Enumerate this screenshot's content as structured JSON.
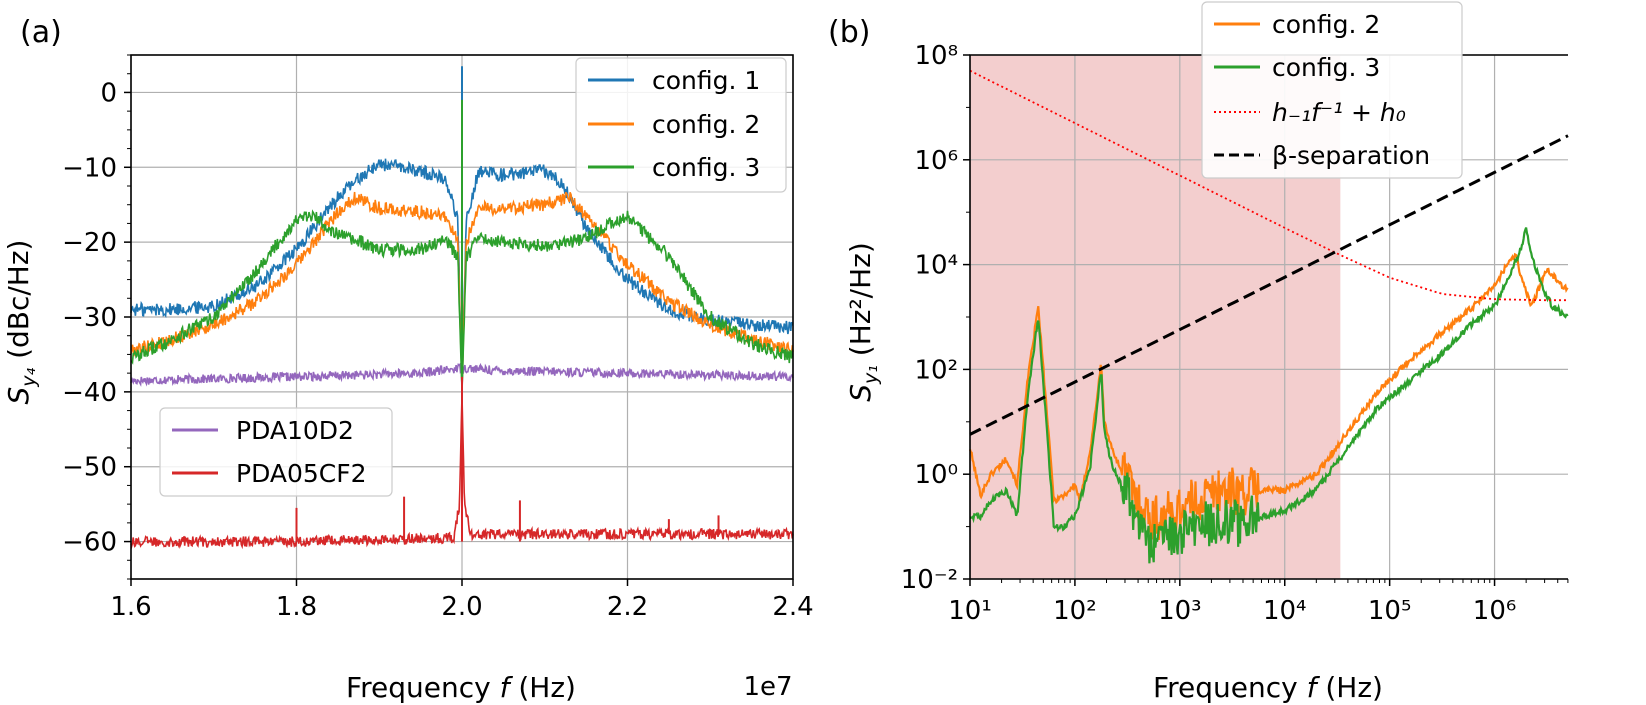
{
  "chart_data": [
    {
      "panel": "(a)",
      "type": "line",
      "xlabel_prefix": "Frequency ",
      "xlabel_var": "f",
      "xlabel_unit": " (Hz)",
      "ylabel_main": "S",
      "ylabel_sub": "y₄",
      "ylabel_unit": " (dBc/Hz)",
      "x_offset_text": "1e7",
      "xlim": [
        1.6,
        2.4
      ],
      "ylim": [
        -65,
        5
      ],
      "xticks": [
        1.6,
        1.8,
        2.0,
        2.2,
        2.4
      ],
      "xtick_labels": [
        "1.6",
        "1.8",
        "2.0",
        "2.2",
        "2.4"
      ],
      "yticks": [
        0,
        -10,
        -20,
        -30,
        -40,
        -50,
        -60
      ],
      "ytick_labels": [
        "0",
        "−10",
        "−20",
        "−30",
        "−40",
        "−50",
        "−60"
      ],
      "grid": true,
      "legend_upper": {
        "position": "top-right",
        "entries": [
          "config. 1",
          "config. 2",
          "config. 3"
        ]
      },
      "legend_lower": {
        "position": "center-left",
        "entries": [
          "PDA10D2",
          "PDA05CF2"
        ]
      },
      "series": [
        {
          "name": "config. 1",
          "color": "#1f77b4",
          "x": [
            1.6,
            1.65,
            1.7,
            1.75,
            1.8,
            1.85,
            1.88,
            1.9,
            1.95,
            1.98,
            1.995,
            2.0,
            2.005,
            2.02,
            2.05,
            2.1,
            2.12,
            2.15,
            2.2,
            2.25,
            2.3,
            2.35,
            2.4
          ],
          "y": [
            -29,
            -29,
            -28.5,
            -26,
            -21,
            -14,
            -11,
            -9.5,
            -10.5,
            -11.5,
            -17,
            -40,
            -17,
            -10.5,
            -11,
            -10.5,
            -12,
            -18,
            -25,
            -29,
            -30.5,
            -31,
            -31.5
          ]
        },
        {
          "name": "config. 2",
          "color": "#ff7f0e",
          "x": [
            1.6,
            1.65,
            1.7,
            1.75,
            1.8,
            1.85,
            1.87,
            1.9,
            1.95,
            1.98,
            1.995,
            2.0,
            2.005,
            2.02,
            2.05,
            2.1,
            2.13,
            2.15,
            2.2,
            2.25,
            2.3,
            2.35,
            2.4
          ],
          "y": [
            -34.5,
            -33,
            -31,
            -28,
            -23,
            -16,
            -14,
            -15.5,
            -16,
            -16.5,
            -20,
            -40,
            -20,
            -15.5,
            -15.5,
            -15,
            -14,
            -16.5,
            -23,
            -28,
            -31,
            -33,
            -34.5
          ]
        },
        {
          "name": "config. 3",
          "color": "#2ca02c",
          "x": [
            1.6,
            1.65,
            1.7,
            1.75,
            1.8,
            1.82,
            1.85,
            1.9,
            1.95,
            1.98,
            1.995,
            2.0,
            2.005,
            2.02,
            2.05,
            2.1,
            2.15,
            2.18,
            2.2,
            2.25,
            2.3,
            2.35,
            2.4
          ],
          "y": [
            -35.5,
            -33,
            -30,
            -24,
            -17,
            -16.5,
            -19,
            -21,
            -21,
            -19.5,
            -22,
            -40,
            -22,
            -19.5,
            -20,
            -20.5,
            -19.5,
            -17.5,
            -16.5,
            -22,
            -30,
            -33.5,
            -35.5
          ]
        },
        {
          "name": "PDA10D2",
          "color": "#9467bd",
          "x": [
            1.6,
            1.8,
            1.95,
            2.0,
            2.05,
            2.2,
            2.4
          ],
          "y": [
            -38.5,
            -38,
            -37.5,
            -36.8,
            -37.2,
            -37.5,
            -38
          ]
        },
        {
          "name": "PDA05CF2",
          "color": "#d62728",
          "x": [
            1.6,
            1.8,
            1.99,
            1.997,
            2.0,
            2.003,
            2.01,
            2.2,
            2.4
          ],
          "y": [
            -60,
            -60,
            -59.5,
            -55,
            -40,
            -55,
            -59,
            -59,
            -59
          ]
        }
      ],
      "spikes": [
        {
          "series": "config. 1",
          "x": 2.0,
          "y_top": 3.5,
          "y_base": -40
        },
        {
          "series": "config. 3",
          "x": 2.0,
          "y_top": -1,
          "y_base": -40
        },
        {
          "series": "PDA05CF2",
          "x": 2.0,
          "y_top": -38,
          "y_base": -60
        },
        {
          "series": "PDA05CF2",
          "x": 1.8,
          "y_top": -55.5,
          "y_base": -60
        },
        {
          "series": "PDA05CF2",
          "x": 1.93,
          "y_top": -54,
          "y_base": -60
        },
        {
          "series": "PDA05CF2",
          "x": 2.07,
          "y_top": -54.5,
          "y_base": -60
        },
        {
          "series": "PDA05CF2",
          "x": 2.25,
          "y_top": -57,
          "y_base": -59
        },
        {
          "series": "PDA05CF2",
          "x": 2.31,
          "y_top": -56.5,
          "y_base": -59
        }
      ]
    },
    {
      "panel": "(b)",
      "type": "line",
      "xscale": "log",
      "yscale": "log",
      "xlabel_prefix": "Frequency ",
      "xlabel_var": "f",
      "xlabel_unit": " (Hz)",
      "ylabel_main": "S",
      "ylabel_sub": "y₁",
      "ylabel_unit": " (Hz²/Hz)",
      "xlim_log10": [
        1,
        6.7
      ],
      "ylim_log10": [
        -2,
        8
      ],
      "xtick_exponents": [
        1,
        2,
        3,
        4,
        5,
        6
      ],
      "xtick_labels": [
        "10¹",
        "10²",
        "10³",
        "10⁴",
        "10⁵",
        "10⁶"
      ],
      "ytick_exponents": [
        -2,
        0,
        2,
        4,
        6,
        8
      ],
      "ytick_labels": [
        "10⁻²",
        "10⁰",
        "10²",
        "10⁴",
        "10⁶",
        "10⁸"
      ],
      "grid": true,
      "shaded_region_log10_x": [
        1,
        4.53
      ],
      "shade_color": "#e89d9e",
      "legend": {
        "position": "top-right",
        "entries": [
          "config. 2",
          "config. 3",
          "h₋₁f⁻¹ + h₀",
          "β-separation"
        ]
      },
      "series": [
        {
          "name": "config. 2",
          "color": "#ff7f0e",
          "log10_x": [
            1,
            1.1,
            1.2,
            1.35,
            1.45,
            1.55,
            1.65,
            1.72,
            1.8,
            1.9,
            2.0,
            2.05,
            2.15,
            2.25,
            2.28,
            2.35,
            2.5,
            2.6,
            2.75,
            2.9,
            3.0,
            3.2,
            3.4,
            3.6,
            3.8,
            4.0,
            4.3,
            4.6,
            4.9,
            5.2,
            5.5,
            5.8,
            6.0,
            6.15,
            6.2,
            6.25,
            6.35,
            6.5,
            6.7
          ],
          "log10_y": [
            0.5,
            -0.4,
            0,
            0.3,
            -0.2,
            1.8,
            3.2,
            1.5,
            -0.5,
            -0.4,
            -0.2,
            -0.5,
            0.5,
            2.1,
            1.0,
            0.5,
            -0.2,
            -0.7,
            -1.0,
            -0.9,
            -0.8,
            -0.6,
            -0.4,
            -0.5,
            -0.3,
            -0.3,
            0,
            0.8,
            1.6,
            2.2,
            2.7,
            3.2,
            3.6,
            4.1,
            4.2,
            3.8,
            3.2,
            3.9,
            3.5
          ]
        },
        {
          "name": "config. 3",
          "color": "#2ca02c",
          "log10_x": [
            1,
            1.1,
            1.2,
            1.35,
            1.45,
            1.55,
            1.65,
            1.72,
            1.8,
            1.9,
            2.0,
            2.05,
            2.15,
            2.25,
            2.28,
            2.35,
            2.5,
            2.6,
            2.75,
            2.9,
            3.0,
            3.2,
            3.4,
            3.6,
            3.8,
            4.0,
            4.3,
            4.6,
            4.9,
            5.2,
            5.5,
            5.8,
            6.0,
            6.15,
            6.25,
            6.3,
            6.35,
            6.45,
            6.55,
            6.7
          ],
          "log10_y": [
            -0.8,
            -0.8,
            -0.5,
            -0.3,
            -0.8,
            1.5,
            3.0,
            1.2,
            -1.0,
            -1.0,
            -0.8,
            -0.5,
            0.2,
            2.0,
            0.8,
            0.2,
            -0.5,
            -1.2,
            -1.5,
            -1.4,
            -1.3,
            -1.1,
            -1.0,
            -1.1,
            -0.8,
            -0.7,
            -0.3,
            0.5,
            1.3,
            1.8,
            2.3,
            2.9,
            3.2,
            3.8,
            4.3,
            4.7,
            4.2,
            3.6,
            3.2,
            3.0
          ]
        },
        {
          "name": "h₋₁f⁻¹ + h₀",
          "color": "#ff0000",
          "style": "dotted",
          "log10_x": [
            1,
            1.5,
            2,
            2.5,
            3,
            3.5,
            4,
            4.5,
            5,
            5.5,
            6,
            6.5,
            6.7
          ],
          "log10_y": [
            7.7,
            7.2,
            6.7,
            6.2,
            5.7,
            5.2,
            4.7,
            4.21,
            3.75,
            3.44,
            3.34,
            3.32,
            3.32
          ]
        },
        {
          "name": "β-separation",
          "color": "#000000",
          "style": "dashed",
          "log10_x": [
            1,
            6.7
          ],
          "log10_y": [
            0.76,
            6.46
          ]
        }
      ]
    }
  ]
}
